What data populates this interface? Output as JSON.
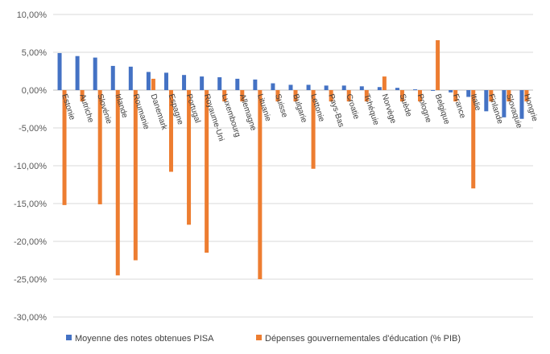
{
  "chart_data": {
    "type": "bar",
    "y_ticks": [
      "10,00%",
      "5,00%",
      "0,00%",
      "-5,00%",
      "-10,00%",
      "-15,00%",
      "-20,00%",
      "-25,00%",
      "-30,00%"
    ],
    "ylim": [
      -30,
      10
    ],
    "y_unit": "%",
    "grid": true,
    "legend_position": "bottom",
    "categories": [
      "Estonie",
      "Autriche",
      "Slovénie",
      "Irlande",
      "Roumanie",
      "Danemark",
      "Espagne",
      "Portugal",
      "Royaume-Uni",
      "Luxembourg",
      "Allemagne",
      "Lituanie",
      "Suisse",
      "Bulgarie",
      "Lettonie",
      "Pays-Bas",
      "Croatie",
      "Tchéquie",
      "Norvège",
      "Suède",
      "Pologne",
      "Belgique",
      "France",
      "Italie",
      "Finlande",
      "Slovaquie",
      "Hongrie"
    ],
    "series": [
      {
        "name": "Moyenne des notes obtenues PISA",
        "color": "#4472C4",
        "values": [
          4.9,
          4.5,
          4.3,
          3.2,
          3.1,
          2.4,
          2.3,
          2.0,
          1.8,
          1.7,
          1.5,
          1.4,
          0.9,
          0.7,
          0.7,
          0.6,
          0.6,
          0.5,
          0.4,
          0.3,
          0.1,
          -0.1,
          -0.3,
          -0.9,
          -2.8,
          -3.6,
          -3.8
        ]
      },
      {
        "name": "Dépenses gouvernementales d'éducation (% PIB)",
        "color": "#ED7D31",
        "values": [
          -15.2,
          -1.5,
          -15.1,
          -24.5,
          -22.5,
          1.5,
          -10.8,
          -17.8,
          -21.5,
          -1.5,
          -1.5,
          -25.0,
          -1.5,
          -1.5,
          -10.4,
          -1.5,
          -1.5,
          -1.5,
          1.8,
          -1.5,
          -1.5,
          6.6,
          -1.5,
          -13.0,
          -1.5,
          -1.5,
          -1.5
        ]
      }
    ]
  }
}
